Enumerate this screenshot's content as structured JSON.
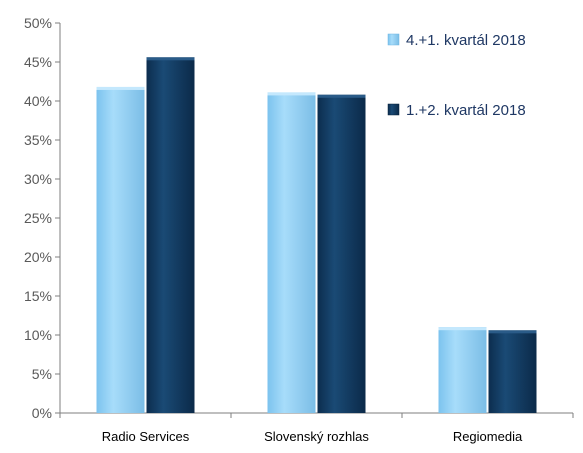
{
  "chart_data": {
    "type": "bar",
    "categories": [
      "Radio Services",
      "Slovenský rozhlas",
      "Regiomedia"
    ],
    "series": [
      {
        "name": "4.+1. kvartál 2018",
        "values": [
          41.8,
          41.1,
          11.0
        ],
        "color": "#8ecdf3"
      },
      {
        "name": "1.+2. kvartál 2018",
        "values": [
          45.6,
          40.8,
          10.6
        ],
        "color": "#10365c"
      }
    ],
    "y_ticks": [
      "0%",
      "5%",
      "10%",
      "15%",
      "20%",
      "25%",
      "30%",
      "35%",
      "40%",
      "45%",
      "50%"
    ],
    "ylim": [
      0,
      50
    ],
    "grid": false,
    "legend_position": "top-right",
    "title": "",
    "xlabel": "",
    "ylabel": ""
  }
}
